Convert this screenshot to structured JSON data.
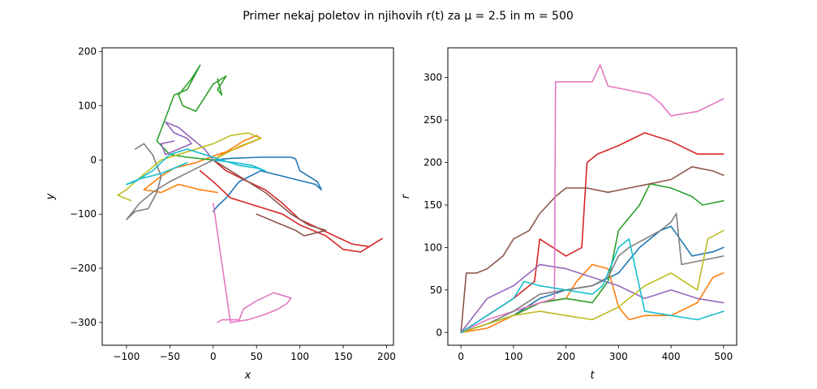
{
  "figure": {
    "title": "Primer nekaj poletov in njihovih r(t) za μ = 2.5 in m = 500"
  },
  "chart_data": [
    {
      "type": "line",
      "xlabel": "x",
      "ylabel": "y",
      "xlim": [
        -128,
        208
      ],
      "ylim": [
        -342,
        207
      ],
      "xticks": [
        -100,
        -50,
        0,
        50,
        100,
        150,
        200
      ],
      "yticks": [
        -300,
        -200,
        -100,
        0,
        100,
        200
      ],
      "grid": false,
      "series": [
        {
          "color": "#1f77b4",
          "x": [
            0,
            20,
            55,
            90,
            95,
            100,
            110,
            120,
            125,
            118,
            80,
            55,
            30,
            15,
            5,
            0
          ],
          "y": [
            0,
            3,
            5,
            5,
            2,
            -20,
            -30,
            -40,
            -55,
            -45,
            -30,
            -20,
            -40,
            -70,
            -85,
            -95
          ]
        },
        {
          "color": "#ff7f0e",
          "x": [
            0,
            35,
            50,
            55,
            40,
            25,
            5,
            -20,
            -45,
            -60,
            -80,
            -60,
            -40,
            -15,
            5
          ],
          "y": [
            0,
            35,
            45,
            40,
            30,
            20,
            10,
            -5,
            -15,
            -30,
            -55,
            -60,
            -45,
            -55,
            -60
          ]
        },
        {
          "color": "#2ca02c",
          "x": [
            0,
            -30,
            -50,
            -65,
            -45,
            -30,
            -20,
            -15,
            -25,
            -40,
            -35,
            -20,
            0,
            15,
            5,
            10,
            5
          ],
          "y": [
            0,
            5,
            10,
            35,
            120,
            130,
            160,
            175,
            150,
            120,
            100,
            90,
            140,
            155,
            130,
            120,
            150
          ]
        },
        {
          "color": "#d62728",
          "x": [
            0,
            15,
            40,
            60,
            80,
            100,
            120,
            140,
            160,
            180,
            195,
            170,
            150,
            130,
            100,
            80,
            60,
            40,
            20,
            0,
            -15
          ],
          "y": [
            0,
            -20,
            -40,
            -55,
            -80,
            -110,
            -125,
            -140,
            -155,
            -160,
            -145,
            -170,
            -165,
            -140,
            -120,
            -100,
            -90,
            -80,
            -70,
            -40,
            -20
          ]
        },
        {
          "color": "#9467bd",
          "x": [
            0,
            -10,
            -25,
            -40,
            -55,
            -45,
            -30,
            -25,
            -40,
            -55,
            -60,
            -45
          ],
          "y": [
            0,
            20,
            40,
            60,
            70,
            50,
            40,
            30,
            20,
            10,
            30,
            35
          ]
        },
        {
          "color": "#8c564b",
          "x": [
            0,
            20,
            40,
            60,
            75,
            90,
            110,
            130,
            105,
            95,
            80,
            65,
            50
          ],
          "y": [
            0,
            -20,
            -40,
            -60,
            -80,
            -100,
            -120,
            -130,
            -140,
            -130,
            -120,
            -110,
            -100
          ]
        },
        {
          "color": "#e377c2",
          "x": [
            0,
            10,
            20,
            40,
            60,
            75,
            85,
            90,
            70,
            50,
            35,
            30,
            10,
            5
          ],
          "y": [
            -80,
            -190,
            -300,
            -295,
            -285,
            -275,
            -265,
            -255,
            -245,
            -260,
            -275,
            -295,
            -295,
            -300
          ]
        },
        {
          "color": "#7f7f7f",
          "x": [
            0,
            -25,
            -50,
            -70,
            -85,
            -95,
            -100,
            -90,
            -75,
            -65,
            -60,
            -70,
            -80,
            -90
          ],
          "y": [
            0,
            -20,
            -40,
            -60,
            -80,
            -100,
            -110,
            -95,
            -90,
            -60,
            -30,
            10,
            30,
            20
          ]
        },
        {
          "color": "#bcbd22",
          "x": [
            0,
            30,
            55,
            40,
            20,
            0,
            -20,
            -40,
            -60,
            -75,
            -90,
            -100,
            -110,
            -95
          ],
          "y": [
            0,
            25,
            40,
            50,
            45,
            30,
            20,
            10,
            0,
            -20,
            -40,
            -55,
            -65,
            -75
          ]
        },
        {
          "color": "#17becf",
          "x": [
            0,
            25,
            45,
            60,
            50,
            30,
            10,
            -10,
            -30,
            -50,
            -70,
            -90,
            -100,
            -85,
            -60,
            -30
          ],
          "y": [
            0,
            -5,
            -10,
            -20,
            -15,
            -10,
            0,
            10,
            20,
            10,
            -20,
            -40,
            -45,
            -35,
            -25,
            -5
          ]
        }
      ]
    },
    {
      "type": "line",
      "xlabel": "t",
      "ylabel": "r",
      "xlim": [
        -25,
        525
      ],
      "ylim": [
        -15,
        335
      ],
      "xticks": [
        0,
        100,
        200,
        300,
        400,
        500
      ],
      "yticks": [
        0,
        50,
        100,
        150,
        200,
        250,
        300
      ],
      "grid": false,
      "series": [
        {
          "color": "#1f77b4",
          "x": [
            0,
            50,
            100,
            150,
            200,
            250,
            300,
            320,
            340,
            380,
            400,
            440,
            480,
            500
          ],
          "y": [
            0,
            10,
            20,
            40,
            50,
            55,
            70,
            85,
            100,
            120,
            125,
            90,
            95,
            100
          ]
        },
        {
          "color": "#ff7f0e",
          "x": [
            0,
            50,
            100,
            150,
            200,
            220,
            250,
            280,
            300,
            320,
            350,
            400,
            450,
            480,
            500
          ],
          "y": [
            0,
            5,
            20,
            35,
            40,
            60,
            80,
            75,
            30,
            15,
            20,
            20,
            35,
            65,
            70
          ]
        },
        {
          "color": "#2ca02c",
          "x": [
            0,
            50,
            100,
            150,
            200,
            250,
            280,
            300,
            340,
            360,
            400,
            440,
            460,
            500
          ],
          "y": [
            0,
            10,
            20,
            35,
            40,
            35,
            60,
            120,
            150,
            175,
            170,
            160,
            150,
            155
          ]
        },
        {
          "color": "#d62728",
          "x": [
            0,
            50,
            100,
            140,
            150,
            200,
            230,
            240,
            260,
            300,
            350,
            400,
            450,
            500
          ],
          "y": [
            0,
            20,
            40,
            60,
            110,
            90,
            100,
            200,
            210,
            220,
            235,
            225,
            210,
            210
          ]
        },
        {
          "color": "#9467bd",
          "x": [
            0,
            50,
            100,
            150,
            200,
            250,
            300,
            350,
            400,
            450,
            500
          ],
          "y": [
            0,
            40,
            55,
            80,
            75,
            65,
            55,
            40,
            50,
            40,
            35
          ]
        },
        {
          "color": "#8c564b",
          "x": [
            0,
            10,
            30,
            50,
            80,
            100,
            130,
            150,
            180,
            200,
            240,
            280,
            320,
            360,
            400,
            440,
            480,
            500
          ],
          "y": [
            0,
            70,
            70,
            75,
            90,
            110,
            120,
            140,
            160,
            170,
            170,
            165,
            170,
            175,
            180,
            195,
            190,
            185
          ]
        },
        {
          "color": "#e377c2",
          "x": [
            0,
            50,
            100,
            150,
            178,
            180,
            200,
            250,
            265,
            280,
            320,
            360,
            380,
            400,
            450,
            500
          ],
          "y": [
            0,
            15,
            25,
            35,
            40,
            295,
            295,
            295,
            315,
            290,
            285,
            280,
            270,
            255,
            260,
            275
          ]
        },
        {
          "color": "#7f7f7f",
          "x": [
            0,
            50,
            100,
            150,
            200,
            250,
            280,
            300,
            320,
            350,
            380,
            400,
            410,
            420,
            460,
            500
          ],
          "y": [
            0,
            10,
            25,
            45,
            50,
            55,
            65,
            90,
            100,
            110,
            120,
            130,
            140,
            80,
            85,
            90
          ]
        },
        {
          "color": "#bcbd22",
          "x": [
            0,
            50,
            100,
            150,
            200,
            250,
            300,
            350,
            400,
            450,
            470,
            500
          ],
          "y": [
            0,
            10,
            20,
            25,
            20,
            15,
            30,
            55,
            70,
            50,
            110,
            120
          ]
        },
        {
          "color": "#17becf",
          "x": [
            0,
            50,
            100,
            120,
            150,
            200,
            250,
            270,
            280,
            300,
            320,
            350,
            400,
            450,
            500
          ],
          "y": [
            0,
            20,
            40,
            60,
            55,
            50,
            45,
            55,
            70,
            100,
            110,
            25,
            20,
            15,
            25
          ]
        }
      ]
    }
  ]
}
